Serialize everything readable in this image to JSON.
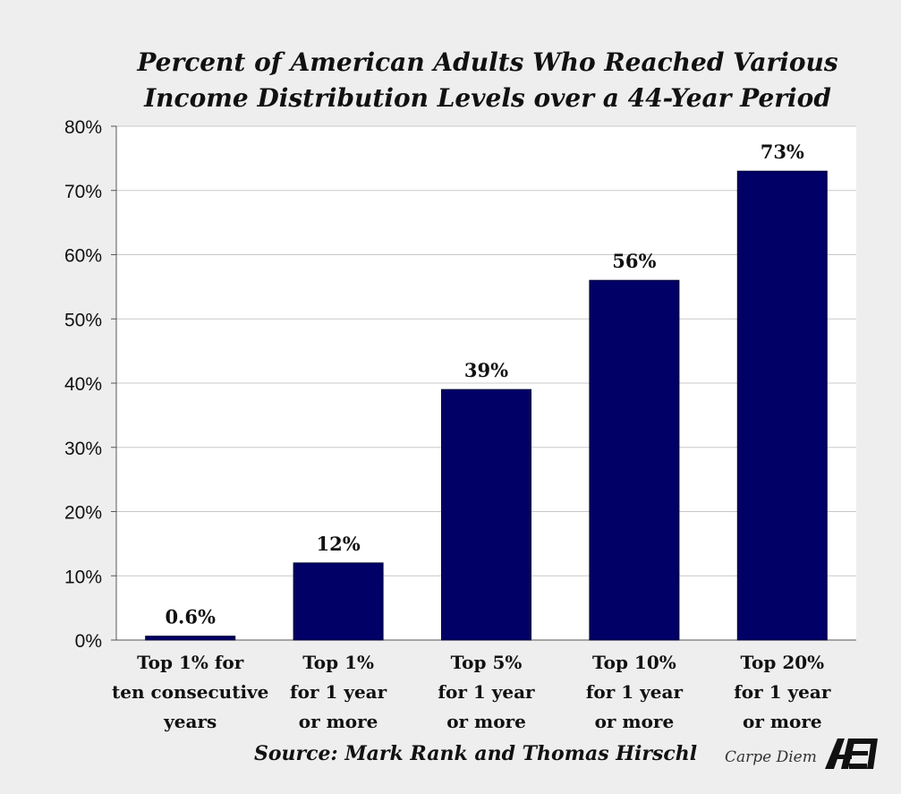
{
  "chart_data": {
    "type": "bar",
    "title": "Percent of American Adults Who Reached Various Income Distribution Levels over a 44-Year Period",
    "title_lines": [
      "Percent of American Adults Who Reached Various",
      "Income Distribution Levels over a 44-Year Period"
    ],
    "categories": [
      [
        "Top 1% for",
        "ten consecutive",
        "years"
      ],
      [
        "Top 1%",
        "for 1 year",
        "or more"
      ],
      [
        "Top 5%",
        "for 1 year",
        "or more"
      ],
      [
        "Top 10%",
        "for 1 year",
        "or more"
      ],
      [
        "Top 20%",
        "for 1 year",
        "or more"
      ]
    ],
    "values": [
      0.6,
      12,
      39,
      56,
      73
    ],
    "data_labels": [
      "0.6%",
      "12%",
      "39%",
      "56%",
      "73%"
    ],
    "ylim": [
      0,
      80
    ],
    "yticks": [
      0,
      10,
      20,
      30,
      40,
      50,
      60,
      70,
      80
    ],
    "ytick_labels": [
      "0%",
      "10%",
      "20%",
      "30%",
      "40%",
      "50%",
      "60%",
      "70%",
      "80%"
    ],
    "grid": true,
    "xlabel": "",
    "ylabel": "",
    "bar_color": "#000066",
    "plot_background": "#ffffff",
    "page_background": "#eeeeee",
    "gridline_color": "#c8c8c8"
  },
  "footer": {
    "source": "Source: Mark Rank and Thomas Hirschl",
    "brand": "Carpe Diem",
    "logo_text": "AEI",
    "logo_icon": "aei-logo-icon"
  }
}
